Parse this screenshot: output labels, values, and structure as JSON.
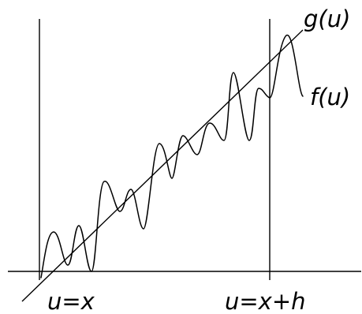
{
  "labels": {
    "g": "g(u)",
    "f": "f(u)",
    "left_bound": "u=x",
    "right_bound": "u=x+h"
  }
}
